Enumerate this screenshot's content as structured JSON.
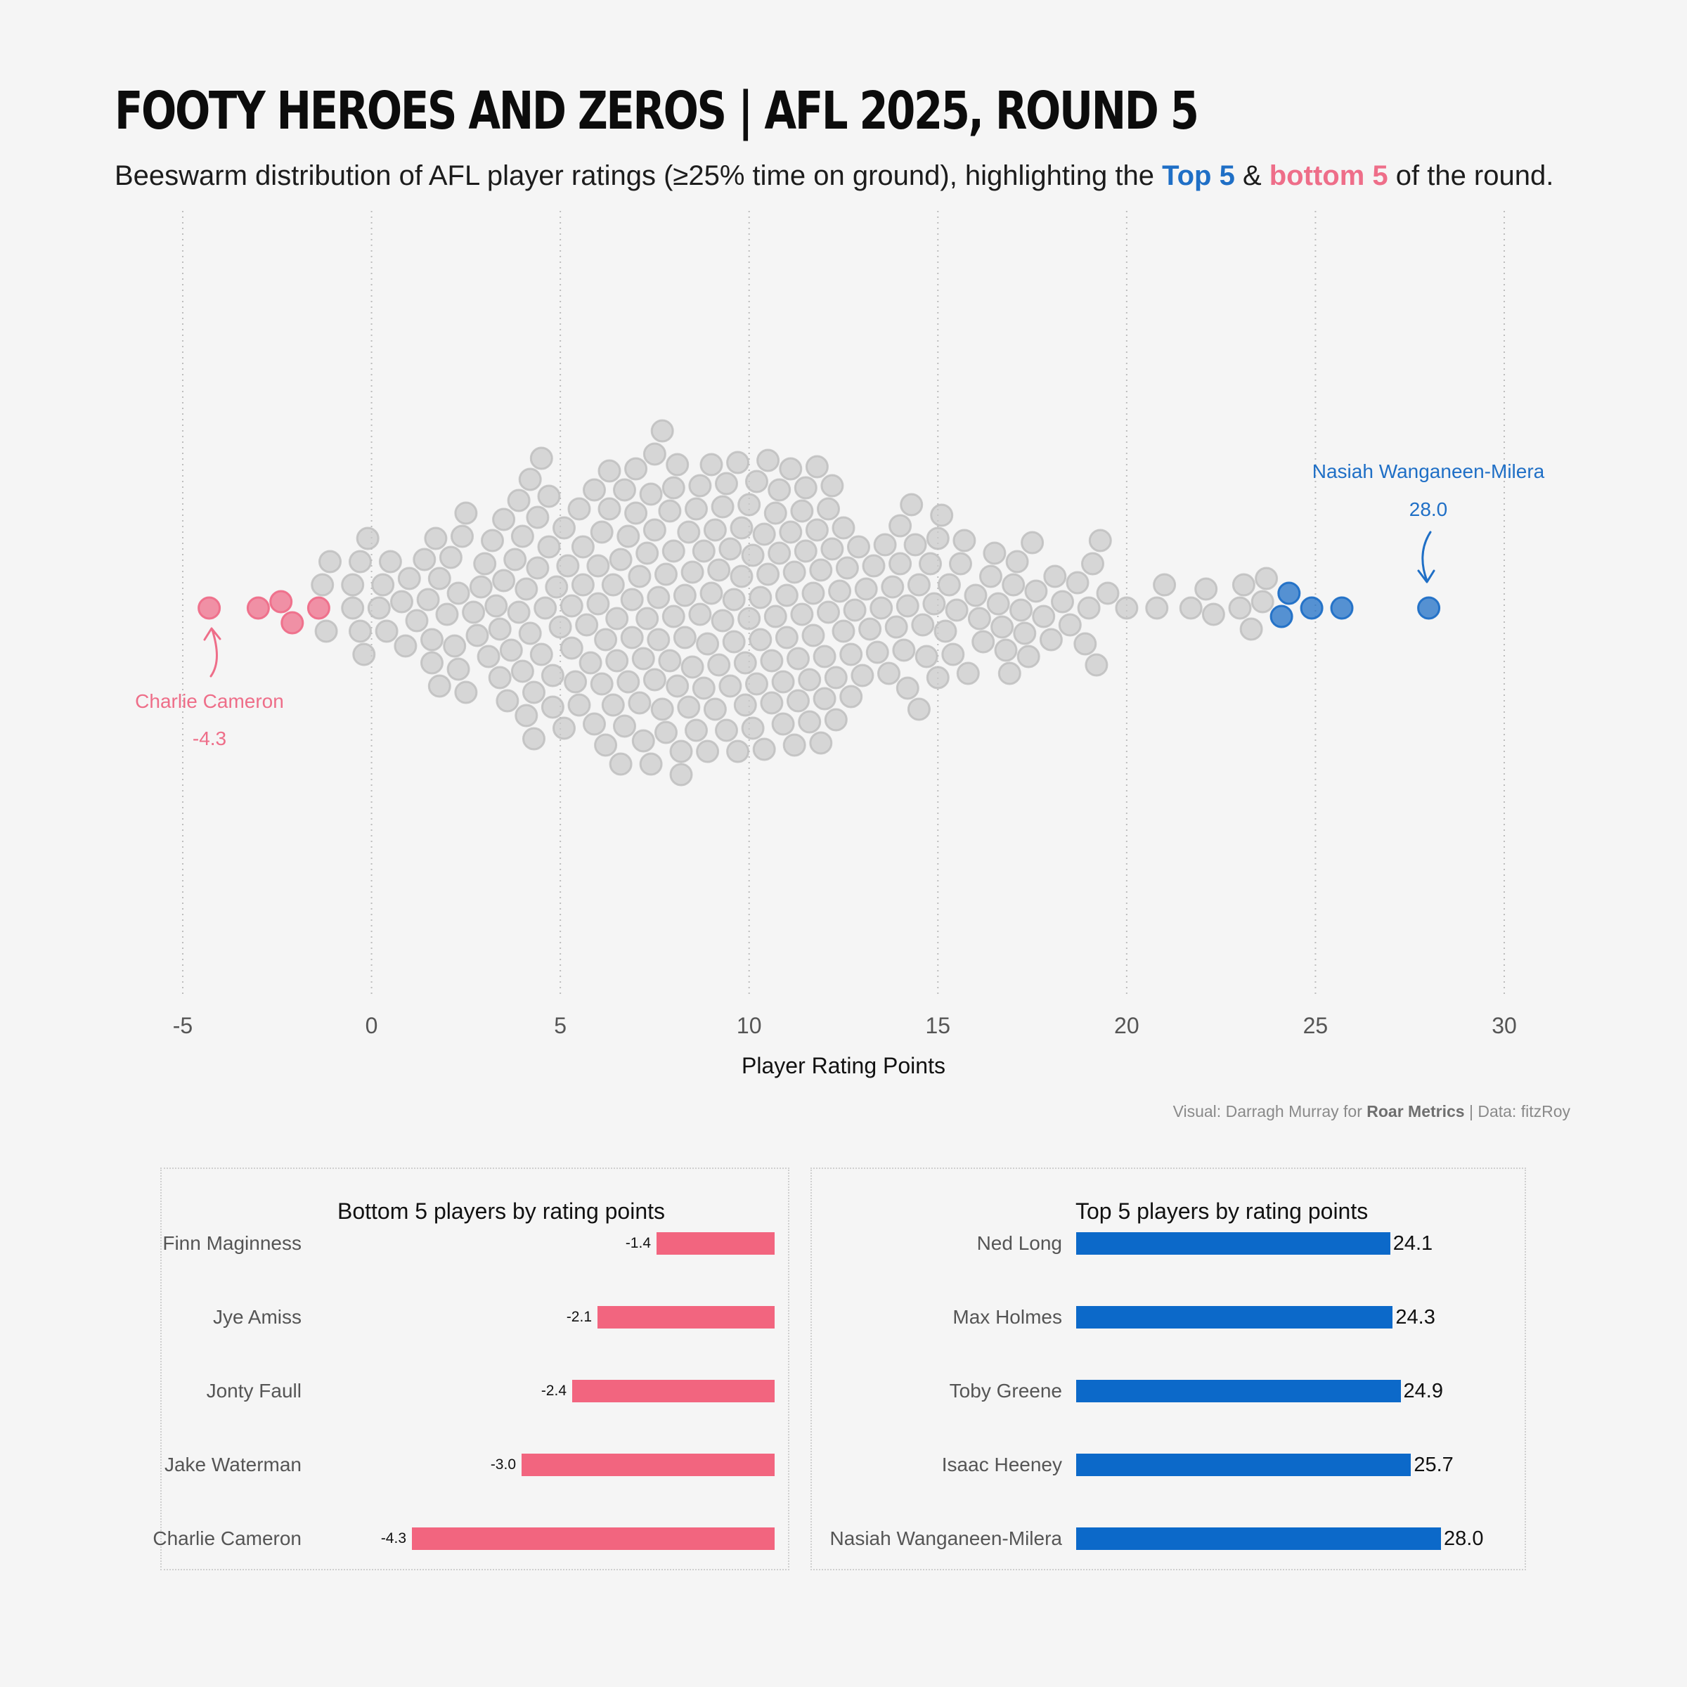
{
  "title": "FOOTY HEROES AND ZEROS |  AFL 2025, ROUND 5",
  "subtitle": {
    "pre": "Beeswarm distribution of AFL player ratings (≥25% time on ground), highlighting the ",
    "top": "Top 5",
    "amp": " & ",
    "bottom": "bottom 5",
    "post": " of the round."
  },
  "colors": {
    "top": "#1f6fc6",
    "bottom": "#ee6e89",
    "other": "#c9c9c9",
    "bar_top": "#0c69c9",
    "bar_bottom": "#f2657f"
  },
  "chart_data": [
    {
      "type": "scatter",
      "subtype": "beeswarm",
      "xlabel": "Player Rating Points",
      "xlim": [
        -5,
        30
      ],
      "xticks": [
        -5,
        0,
        5,
        10,
        15,
        20,
        25,
        30
      ],
      "xtick_labels": [
        "-5",
        "0",
        "5",
        "10",
        "15",
        "20",
        "25",
        "30"
      ],
      "grid": "vertical dotted",
      "series": [
        {
          "name": "Top 5",
          "values": [
            24.1,
            24.3,
            24.9,
            25.7,
            28.0
          ]
        },
        {
          "name": "bottom 5",
          "values": [
            -1.4,
            -2.1,
            -2.4,
            -3.0,
            -4.3
          ]
        },
        {
          "group": "other",
          "values": [
            -1.2,
            -1.3,
            -1.1,
            -0.5,
            -0.5,
            -0.3,
            -0.3,
            -0.2,
            -0.1,
            0.2,
            0.3,
            0.4,
            0.5,
            0.8,
            0.9,
            1.0,
            1.2,
            1.4,
            1.5,
            1.6,
            1.6,
            1.7,
            1.8,
            1.8,
            2.0,
            2.1,
            2.2,
            2.3,
            2.3,
            2.4,
            2.5,
            2.5,
            2.7,
            2.8,
            2.9,
            3.0,
            3.1,
            3.2,
            3.3,
            3.4,
            3.4,
            3.5,
            3.5,
            3.6,
            3.7,
            3.8,
            3.9,
            3.9,
            4.0,
            4.0,
            4.1,
            4.1,
            4.2,
            4.2,
            4.3,
            4.3,
            4.4,
            4.4,
            4.5,
            4.5,
            4.6,
            4.7,
            4.7,
            4.8,
            4.8,
            4.9,
            5.0,
            5.1,
            5.1,
            5.2,
            5.3,
            5.3,
            5.4,
            5.5,
            5.5,
            5.6,
            5.6,
            5.7,
            5.8,
            5.9,
            5.9,
            6.0,
            6.0,
            6.1,
            6.1,
            6.2,
            6.2,
            6.3,
            6.3,
            6.4,
            6.4,
            6.5,
            6.5,
            6.6,
            6.6,
            6.7,
            6.7,
            6.8,
            6.8,
            6.9,
            6.9,
            7.0,
            7.0,
            7.1,
            7.1,
            7.2,
            7.2,
            7.3,
            7.3,
            7.4,
            7.4,
            7.5,
            7.5,
            7.5,
            7.6,
            7.6,
            7.7,
            7.7,
            7.8,
            7.8,
            7.9,
            7.9,
            8.0,
            8.0,
            8.0,
            8.1,
            8.1,
            8.2,
            8.2,
            8.3,
            8.3,
            8.4,
            8.4,
            8.5,
            8.5,
            8.6,
            8.6,
            8.7,
            8.7,
            8.8,
            8.8,
            8.9,
            8.9,
            9.0,
            9.0,
            9.1,
            9.1,
            9.2,
            9.2,
            9.3,
            9.3,
            9.4,
            9.4,
            9.5,
            9.5,
            9.6,
            9.6,
            9.7,
            9.7,
            9.8,
            9.8,
            9.9,
            9.9,
            10.0,
            10.0,
            10.1,
            10.1,
            10.2,
            10.2,
            10.3,
            10.3,
            10.4,
            10.4,
            10.5,
            10.5,
            10.6,
            10.6,
            10.7,
            10.7,
            10.8,
            10.8,
            10.9,
            10.9,
            11.0,
            11.0,
            11.1,
            11.1,
            11.2,
            11.2,
            11.3,
            11.3,
            11.4,
            11.4,
            11.5,
            11.5,
            11.6,
            11.6,
            11.7,
            11.7,
            11.8,
            11.8,
            11.9,
            11.9,
            12.0,
            12.0,
            12.1,
            12.1,
            12.2,
            12.2,
            12.3,
            12.3,
            12.4,
            12.5,
            12.5,
            12.6,
            12.7,
            12.7,
            12.8,
            12.9,
            13.0,
            13.1,
            13.2,
            13.3,
            13.4,
            13.5,
            13.6,
            13.7,
            13.8,
            13.9,
            14.0,
            14.0,
            14.1,
            14.2,
            14.2,
            14.3,
            14.4,
            14.5,
            14.5,
            14.6,
            14.7,
            14.8,
            14.9,
            15.0,
            15.0,
            15.1,
            15.2,
            15.3,
            15.4,
            15.5,
            15.6,
            15.7,
            15.8,
            16.0,
            16.1,
            16.2,
            16.4,
            16.5,
            16.6,
            16.7,
            16.8,
            16.9,
            17.0,
            17.1,
            17.2,
            17.3,
            17.4,
            17.5,
            17.6,
            17.8,
            18.0,
            18.1,
            18.3,
            18.5,
            18.7,
            18.9,
            19.0,
            19.1,
            19.2,
            19.3,
            19.5,
            20.0,
            20.8,
            21.0,
            21.7,
            22.1,
            22.3,
            23.0,
            23.1,
            23.3,
            23.6,
            23.7
          ]
        }
      ],
      "annotations": [
        {
          "label": "Nasiah Wanganeen-Milera",
          "value_text": "28.0",
          "x": 28.0,
          "series": "top"
        },
        {
          "label": "Charlie Cameron",
          "value_text": "-4.3",
          "x": -4.3,
          "series": "bottom"
        }
      ]
    },
    {
      "type": "bar",
      "orientation": "horizontal",
      "title": "Bottom 5 players by rating points",
      "categories": [
        "Finn Maginness",
        "Jye Amiss",
        "Jonty Faull",
        "Jake Waterman",
        "Charlie Cameron"
      ],
      "values": [
        -1.4,
        -2.1,
        -2.4,
        -3.0,
        -4.3
      ],
      "value_labels": [
        "-1.4",
        "-2.1",
        "-2.4",
        "-3.0",
        "-4.3"
      ]
    },
    {
      "type": "bar",
      "orientation": "horizontal",
      "title": "Top 5 players by rating points",
      "categories": [
        "Ned Long",
        "Max Holmes",
        "Toby Greene",
        "Isaac Heeney",
        "Nasiah Wanganeen-Milera"
      ],
      "values": [
        24.1,
        24.3,
        24.9,
        25.7,
        28.0
      ],
      "value_labels": [
        "24.1",
        "24.3",
        "24.9",
        "25.7",
        "28.0"
      ]
    }
  ],
  "caption": {
    "visual_label": "Visual: ",
    "author": "Darragh Murray",
    "for_text": " for ",
    "org": "Roar Metrics",
    "sep": " | Data:  ",
    "source": "fitzRoy"
  }
}
